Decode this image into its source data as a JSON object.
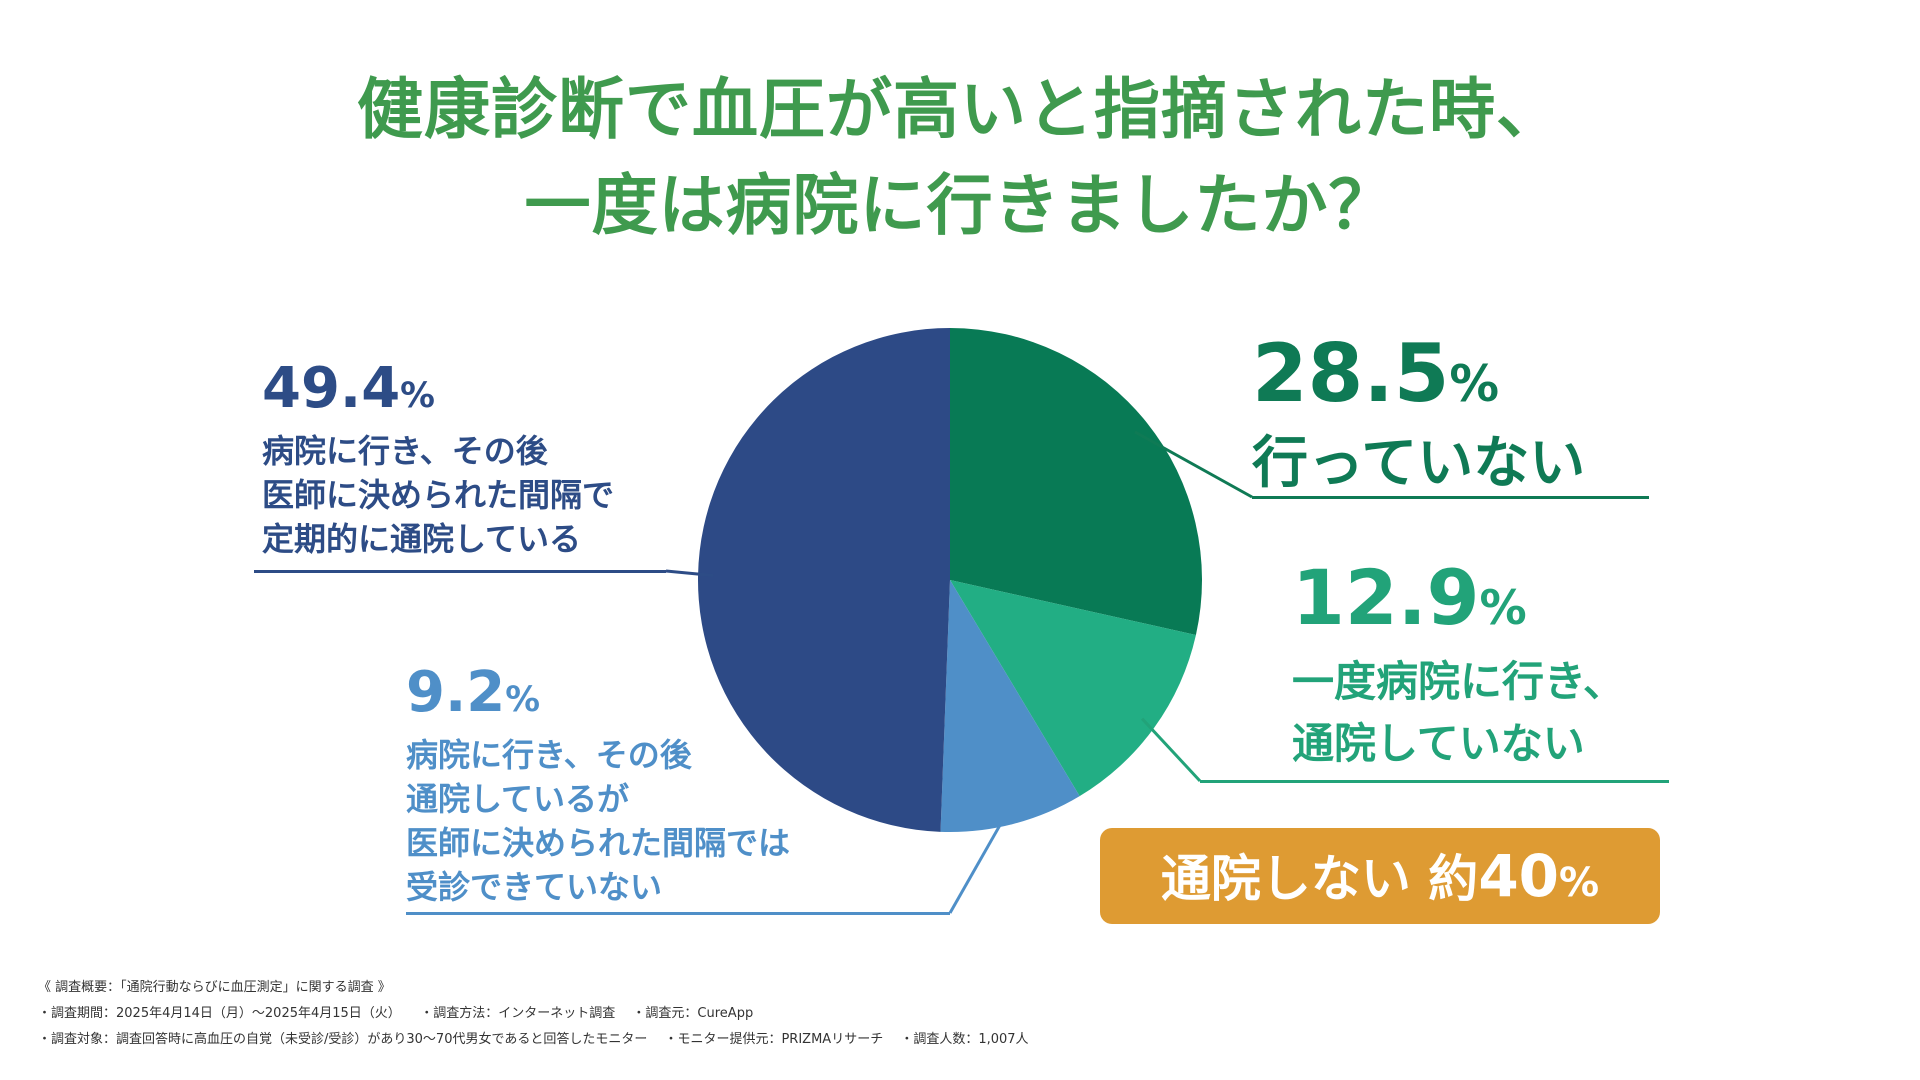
{
  "title": {
    "line1": "健康診断で血圧が高いと指摘された時、",
    "line2": "一度は病院に行きましたか？"
  },
  "chart_data": {
    "type": "pie",
    "slices": [
      {
        "value": 28.5,
        "label_pct": "28.5",
        "label_lines": [
          "行っていない"
        ],
        "color": "#087a55"
      },
      {
        "value": 12.9,
        "label_pct": "12.9",
        "label_lines": [
          "一度病院に行き、",
          "通院していない"
        ],
        "color": "#22ae84"
      },
      {
        "value": 9.2,
        "label_pct": "9.2",
        "label_lines": [
          "病院に行き、その後",
          "通院しているが",
          "医師に決められた間隔では",
          "受診できていない"
        ],
        "color": "#4f8fc8"
      },
      {
        "value": 49.4,
        "label_pct": "49.4",
        "label_lines": [
          "病院に行き、その後",
          "医師に決められた間隔で",
          "定期的に通院している"
        ],
        "color": "#2d4a86"
      }
    ],
    "unit": "%"
  },
  "callout": {
    "text": "通院しない 約",
    "value": "40",
    "unit": "%"
  },
  "footnotes": {
    "line1": "《 調査概要：「通院行動ならびに血圧測定」に関する調査 》",
    "line2": "・調査期間：2025年4月14日（月）～2025年4月15日（火）　　・調査方法：インターネット調査　 ・調査元：CureApp",
    "line3": "・調査対象：調査回答時に高血圧の自覚（未受診/受診）があり30～70代男女であると回答したモニター　 ・モニター提供元：PRIZMAリサーチ　 ・調査人数：1,007人"
  }
}
